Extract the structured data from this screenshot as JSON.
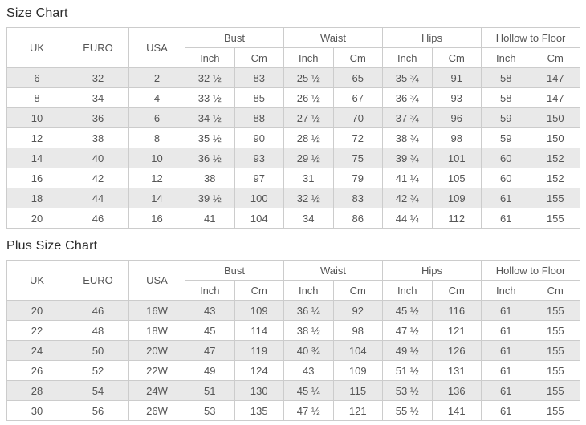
{
  "size_chart": {
    "title": "Size Chart",
    "headers": {
      "uk": "UK",
      "euro": "EURO",
      "usa": "USA",
      "bust": "Bust",
      "waist": "Waist",
      "hips": "Hips",
      "hollow_to_floor": "Hollow to Floor",
      "inch": "Inch",
      "cm": "Cm"
    },
    "rows": [
      [
        "6",
        "32",
        "2",
        "32 ½",
        "83",
        "25 ½",
        "65",
        "35 ¾",
        "91",
        "58",
        "147"
      ],
      [
        "8",
        "34",
        "4",
        "33 ½",
        "85",
        "26 ½",
        "67",
        "36 ¾",
        "93",
        "58",
        "147"
      ],
      [
        "10",
        "36",
        "6",
        "34 ½",
        "88",
        "27 ½",
        "70",
        "37 ¾",
        "96",
        "59",
        "150"
      ],
      [
        "12",
        "38",
        "8",
        "35 ½",
        "90",
        "28 ½",
        "72",
        "38 ¾",
        "98",
        "59",
        "150"
      ],
      [
        "14",
        "40",
        "10",
        "36 ½",
        "93",
        "29 ½",
        "75",
        "39 ¾",
        "101",
        "60",
        "152"
      ],
      [
        "16",
        "42",
        "12",
        "38",
        "97",
        "31",
        "79",
        "41 ¼",
        "105",
        "60",
        "152"
      ],
      [
        "18",
        "44",
        "14",
        "39 ½",
        "100",
        "32 ½",
        "83",
        "42 ¾",
        "109",
        "61",
        "155"
      ],
      [
        "20",
        "46",
        "16",
        "41",
        "104",
        "34",
        "86",
        "44 ¼",
        "112",
        "61",
        "155"
      ]
    ]
  },
  "plus_size_chart": {
    "title": "Plus Size Chart",
    "headers": {
      "uk": "UK",
      "euro": "EURO",
      "usa": "USA",
      "bust": "Bust",
      "waist": "Waist",
      "hips": "Hips",
      "hollow_to_floor": "Hollow to Floor",
      "inch": "Inch",
      "cm": "Cm"
    },
    "rows": [
      [
        "20",
        "46",
        "16W",
        "43",
        "109",
        "36 ¼",
        "92",
        "45 ½",
        "116",
        "61",
        "155"
      ],
      [
        "22",
        "48",
        "18W",
        "45",
        "114",
        "38 ½",
        "98",
        "47 ½",
        "121",
        "61",
        "155"
      ],
      [
        "24",
        "50",
        "20W",
        "47",
        "119",
        "40 ¾",
        "104",
        "49 ½",
        "126",
        "61",
        "155"
      ],
      [
        "26",
        "52",
        "22W",
        "49",
        "124",
        "43",
        "109",
        "51 ½",
        "131",
        "61",
        "155"
      ],
      [
        "28",
        "54",
        "24W",
        "51",
        "130",
        "45 ¼",
        "115",
        "53 ½",
        "136",
        "61",
        "155"
      ],
      [
        "30",
        "56",
        "26W",
        "53",
        "135",
        "47 ½",
        "121",
        "55 ½",
        "141",
        "61",
        "155"
      ]
    ]
  },
  "colors": {
    "stripe_row": "#e9e9e9",
    "border": "#cccccc",
    "cell_text": "#555555",
    "title_text": "#2b2b2b",
    "background": "#ffffff"
  }
}
